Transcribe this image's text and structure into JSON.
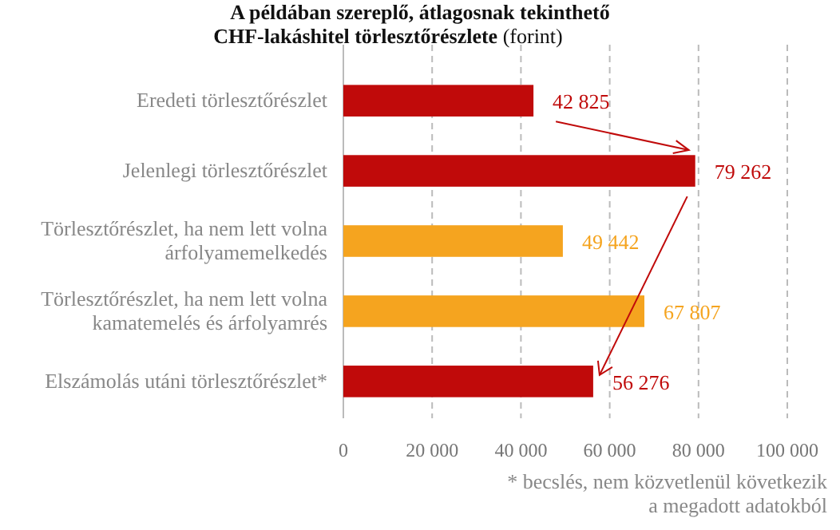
{
  "chart_data": {
    "type": "bar",
    "orientation": "horizontal",
    "title": "A példában szereplő, átlagosnak tekinthető CHF-lakáshitel törlesztőrészlete",
    "subtitle": "(forint)",
    "categories": [
      "Eredeti törlesztőrészlet",
      "Jelenlegi törlesztőrészlet",
      "Törlesztőrészlet, ha nem lett volna árfolyamemelkedés",
      "Törlesztőrészlet, ha nem lett volna kamatemelés és árfolyamrés",
      "Elszámolás utáni törlesztőrészlet*"
    ],
    "values": [
      42825,
      79262,
      49442,
      67807,
      56276
    ],
    "colors": [
      "#c00a0a",
      "#c00a0a",
      "#f5a41f",
      "#f5a41f",
      "#c00a0a"
    ],
    "value_labels": [
      "42 825",
      "79 262",
      "49 442",
      "67 807",
      "56 276"
    ],
    "xlim": [
      0,
      100000
    ],
    "xticks": [
      0,
      {
        "value": 20000,
        "label": "20 000"
      },
      {
        "value": 40000,
        "label": "40 000"
      },
      {
        "value": 60000,
        "label": "60 000"
      },
      {
        "value": 80000,
        "label": "80 000"
      },
      {
        "value": 100000,
        "label": "100 000"
      }
    ],
    "grid": "x",
    "annotations": [
      "* becslés, nem közvetlenül következik a megadott adatokból"
    ]
  }
}
